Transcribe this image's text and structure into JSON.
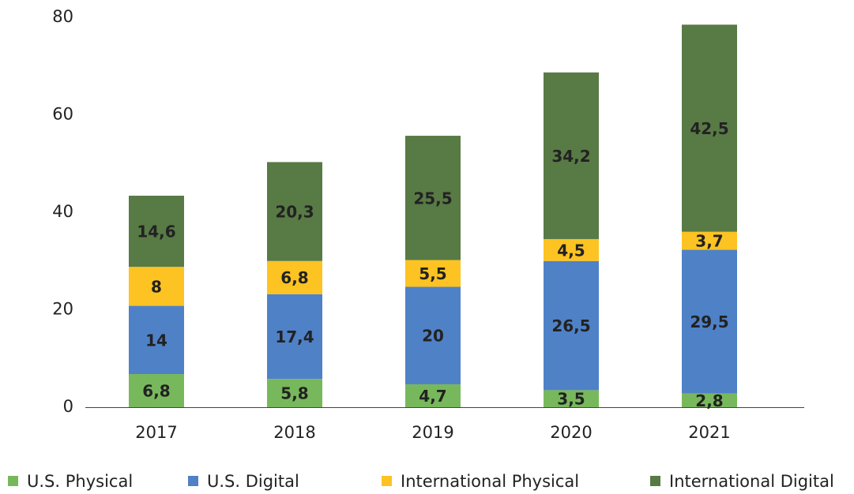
{
  "chart_data": {
    "type": "stacked_bar",
    "categories": [
      "2017",
      "2018",
      "2019",
      "2020",
      "2021"
    ],
    "series": [
      {
        "name": "U.S. Physical",
        "color": "#78b85c",
        "values": [
          6.8,
          5.8,
          4.7,
          3.5,
          2.8
        ],
        "value_labels": [
          "6,8",
          "5,8",
          "4,7",
          "3,5",
          "2,8"
        ]
      },
      {
        "name": "U.S. Digital",
        "color": "#4f81c7",
        "values": [
          14,
          17.4,
          20,
          26.5,
          29.5
        ],
        "value_labels": [
          "14",
          "17,4",
          "20",
          "26,5",
          "29,5"
        ]
      },
      {
        "name": "International Physical",
        "color": "#fcc322",
        "values": [
          8,
          6.8,
          5.5,
          4.5,
          3.7
        ],
        "value_labels": [
          "8",
          "6,8",
          "5,5",
          "4,5",
          "3,7"
        ]
      },
      {
        "name": "International Digital",
        "color": "#587a45",
        "values": [
          14.6,
          20.3,
          25.5,
          34.2,
          42.5
        ],
        "value_labels": [
          "14,6",
          "20,3",
          "25,5",
          "34,2",
          "42,5"
        ]
      }
    ],
    "ylim": [
      0,
      80
    ],
    "yticks": [
      0,
      20,
      40,
      60,
      80
    ],
    "legend": "bottom"
  }
}
